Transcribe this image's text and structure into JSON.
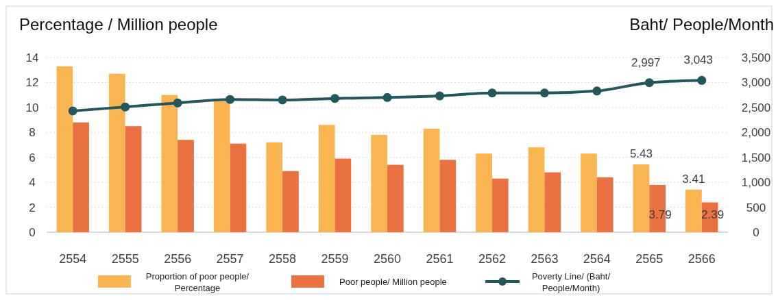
{
  "chart_data": {
    "type": "bar",
    "ylabel": "Percentage / Million people",
    "y2label": "Baht/ People/Month",
    "categories": [
      "2554",
      "2555",
      "2556",
      "2557",
      "2558",
      "2559",
      "2560",
      "2561",
      "2562",
      "2563",
      "2564",
      "2565",
      "2566"
    ],
    "series": [
      {
        "name": "Proportion of poor people/ Percentage",
        "color": "#f8b552",
        "values": [
          13.3,
          12.7,
          11.0,
          10.5,
          7.2,
          8.6,
          7.8,
          8.3,
          6.3,
          6.8,
          6.3,
          5.43,
          3.41
        ],
        "value_labels": [
          null,
          null,
          null,
          null,
          null,
          null,
          null,
          null,
          null,
          null,
          null,
          "5.43",
          "3.41"
        ]
      },
      {
        "name": "Poor people/ Million people",
        "color": "#e97142",
        "values": [
          8.8,
          8.5,
          7.4,
          7.1,
          4.9,
          5.9,
          5.4,
          5.8,
          4.3,
          4.8,
          4.4,
          3.79,
          2.39
        ],
        "value_labels": [
          null,
          null,
          null,
          null,
          null,
          null,
          null,
          null,
          null,
          null,
          null,
          "3.79",
          "2.39"
        ]
      },
      {
        "name": "Poverty Line/ (Baht/ People/Month)",
        "type": "line",
        "axis": "y2",
        "color": "#24565e",
        "values": [
          2430,
          2510,
          2590,
          2660,
          2650,
          2680,
          2700,
          2730,
          2790,
          2790,
          2830,
          2997,
          3043
        ],
        "value_labels": [
          null,
          null,
          null,
          null,
          null,
          null,
          null,
          null,
          null,
          null,
          null,
          "2,997",
          "3,043"
        ]
      }
    ],
    "ylim": [
      0,
      14
    ],
    "yticks": [
      0,
      2,
      4,
      6,
      8,
      10,
      12,
      14
    ],
    "y2lim": [
      0,
      3500
    ],
    "y2ticks": [
      {
        "value": 0,
        "label": "0"
      },
      {
        "value": 500,
        "label": "500"
      },
      {
        "value": 1000,
        "label": "1,000"
      },
      {
        "value": 1500,
        "label": "1,500"
      },
      {
        "value": 2000,
        "label": "2,000"
      },
      {
        "value": 2500,
        "label": "2,500"
      },
      {
        "value": 3000,
        "label": "3,000"
      },
      {
        "value": 3500,
        "label": "3,500"
      }
    ],
    "grid": "y",
    "legend": "bottom",
    "marker": "circle"
  }
}
